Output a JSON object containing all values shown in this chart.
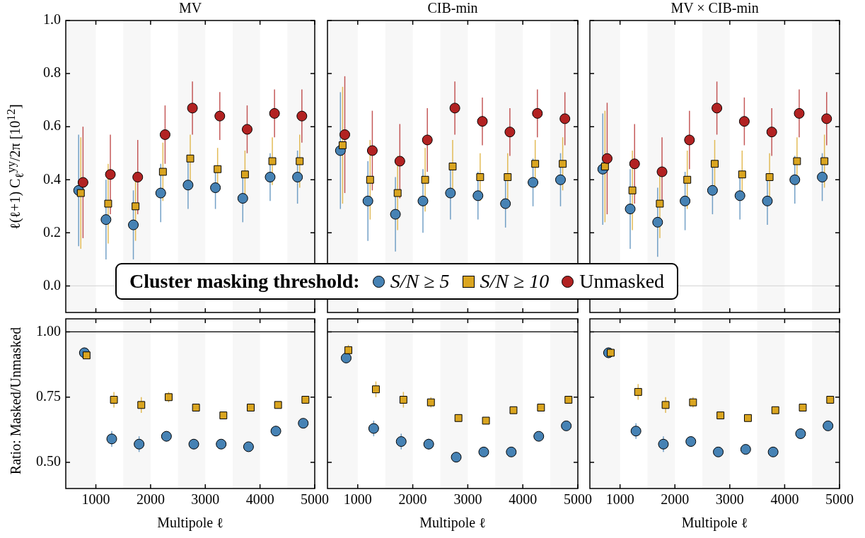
{
  "chart_data": [
    {
      "type": "scatter",
      "title": "MV",
      "ylabel": "ℓ(ℓ+1) C$_{ℓ}$$^{yy}$/2π [10$^{12}$]",
      "xlim": [
        450,
        5000
      ],
      "xticks": [
        1000,
        2000,
        3000,
        4000,
        5000
      ],
      "ylim": [
        -0.1,
        1.0
      ],
      "yticks": [
        {
          "value": 0,
          "label": "0.0"
        },
        {
          "value": 0.2,
          "label": "0.2"
        },
        {
          "value": 0.4,
          "label": "0.4"
        },
        {
          "value": 0.6,
          "label": "0.6"
        },
        {
          "value": 0.8,
          "label": "0.8"
        },
        {
          "value": 1.0,
          "label": "1.0"
        }
      ],
      "tick_labels": "y",
      "legend": "bottom",
      "legend_title": "Cluster masking threshold:",
      "bands": [
        {
          "axis": "x",
          "from": 450,
          "to": 1000,
          "color": "#f7f7f7"
        },
        {
          "axis": "x",
          "from": 1500,
          "to": 2000,
          "color": "#f7f7f7"
        },
        {
          "axis": "x",
          "from": 2500,
          "to": 3000,
          "color": "#f7f7f7"
        },
        {
          "axis": "x",
          "from": 3500,
          "to": 4000,
          "color": "#f7f7f7"
        },
        {
          "axis": "x",
          "from": 4500,
          "to": 5000,
          "color": "#f7f7f7"
        }
      ],
      "ref_lines": [
        {
          "axis": "y",
          "value": 0,
          "color": "#d9d9d9"
        }
      ],
      "series": [
        {
          "name": "S/N ≥ 5",
          "color": "#4682b4",
          "marker": "circle",
          "x": [
            685,
            1185,
            1685,
            2185,
            2685,
            3185,
            3685,
            4185,
            4685
          ],
          "values": [
            0.36,
            0.25,
            0.23,
            0.35,
            0.38,
            0.37,
            0.33,
            0.41,
            0.41
          ],
          "errors": [
            0.21,
            0.15,
            0.13,
            0.11,
            0.09,
            0.08,
            0.09,
            0.09,
            0.1
          ]
        },
        {
          "name": "S/N ≥ 10",
          "color": "#daa520",
          "marker": "square",
          "x": [
            725,
            1225,
            1725,
            2225,
            2725,
            3225,
            3725,
            4225,
            4725
          ],
          "values": [
            0.35,
            0.31,
            0.3,
            0.43,
            0.48,
            0.44,
            0.42,
            0.47,
            0.47
          ],
          "errors": [
            0.21,
            0.15,
            0.13,
            0.11,
            0.09,
            0.08,
            0.09,
            0.09,
            0.1
          ]
        },
        {
          "name": "Unmasked",
          "color": "#b22222",
          "marker": "circle",
          "x": [
            765,
            1265,
            1765,
            2265,
            2765,
            3265,
            3765,
            4265,
            4765
          ],
          "values": [
            0.39,
            0.42,
            0.41,
            0.57,
            0.67,
            0.64,
            0.59,
            0.65,
            0.64
          ],
          "errors": [
            0.21,
            0.15,
            0.14,
            0.11,
            0.1,
            0.09,
            0.09,
            0.09,
            0.1
          ]
        }
      ]
    },
    {
      "type": "scatter",
      "title": "CIB-min",
      "xlim": [
        450,
        5000
      ],
      "xticks": [
        1000,
        2000,
        3000,
        4000,
        5000
      ],
      "ylim": [
        -0.1,
        1.0
      ],
      "yticks": [
        0,
        0.2,
        0.4,
        0.6,
        0.8,
        1.0
      ],
      "tick_labels": false,
      "bands": [
        {
          "axis": "x",
          "from": 450,
          "to": 1000,
          "color": "#f7f7f7"
        },
        {
          "axis": "x",
          "from": 1500,
          "to": 2000,
          "color": "#f7f7f7"
        },
        {
          "axis": "x",
          "from": 2500,
          "to": 3000,
          "color": "#f7f7f7"
        },
        {
          "axis": "x",
          "from": 3500,
          "to": 4000,
          "color": "#f7f7f7"
        },
        {
          "axis": "x",
          "from": 4500,
          "to": 5000,
          "color": "#f7f7f7"
        }
      ],
      "series": [
        {
          "color": "#4682b4",
          "marker": "circle",
          "x": [
            685,
            1185,
            1685,
            2185,
            2685,
            3185,
            3685,
            4185,
            4685
          ],
          "values": [
            0.51,
            0.32,
            0.27,
            0.32,
            0.35,
            0.34,
            0.31,
            0.39,
            0.4
          ],
          "errors": [
            0.22,
            0.15,
            0.14,
            0.12,
            0.1,
            0.09,
            0.09,
            0.09,
            0.1
          ]
        },
        {
          "color": "#daa520",
          "marker": "square",
          "x": [
            725,
            1225,
            1725,
            2225,
            2725,
            3225,
            3725,
            4225,
            4725
          ],
          "values": [
            0.53,
            0.4,
            0.35,
            0.4,
            0.45,
            0.41,
            0.41,
            0.46,
            0.46
          ],
          "errors": [
            0.22,
            0.15,
            0.14,
            0.12,
            0.1,
            0.09,
            0.09,
            0.09,
            0.1
          ]
        },
        {
          "color": "#b22222",
          "marker": "circle",
          "x": [
            765,
            1265,
            1765,
            2265,
            2765,
            3265,
            3765,
            4265,
            4765
          ],
          "values": [
            0.57,
            0.51,
            0.47,
            0.55,
            0.67,
            0.62,
            0.58,
            0.65,
            0.63
          ],
          "errors": [
            0.22,
            0.15,
            0.14,
            0.12,
            0.1,
            0.09,
            0.09,
            0.09,
            0.1
          ]
        }
      ]
    },
    {
      "type": "scatter",
      "title": "MV × CIB-min",
      "xlim": [
        450,
        5000
      ],
      "xticks": [
        1000,
        2000,
        3000,
        4000,
        5000
      ],
      "ylim": [
        -0.1,
        1.0
      ],
      "yticks": [
        0,
        0.2,
        0.4,
        0.6,
        0.8,
        1.0
      ],
      "tick_labels": false,
      "bands": [
        {
          "axis": "x",
          "from": 450,
          "to": 1000,
          "color": "#f7f7f7"
        },
        {
          "axis": "x",
          "from": 1500,
          "to": 2000,
          "color": "#f7f7f7"
        },
        {
          "axis": "x",
          "from": 2500,
          "to": 3000,
          "color": "#f7f7f7"
        },
        {
          "axis": "x",
          "from": 3500,
          "to": 4000,
          "color": "#f7f7f7"
        },
        {
          "axis": "x",
          "from": 4500,
          "to": 5000,
          "color": "#f7f7f7"
        }
      ],
      "ref_lines": [
        {
          "axis": "y",
          "value": 0,
          "color": "#d9d9d9"
        }
      ],
      "series": [
        {
          "color": "#4682b4",
          "marker": "circle",
          "x": [
            685,
            1185,
            1685,
            2185,
            2685,
            3185,
            3685,
            4185,
            4685
          ],
          "values": [
            0.44,
            0.29,
            0.24,
            0.32,
            0.36,
            0.34,
            0.32,
            0.4,
            0.41
          ],
          "errors": [
            0.21,
            0.15,
            0.13,
            0.11,
            0.09,
            0.09,
            0.09,
            0.09,
            0.09
          ]
        },
        {
          "color": "#daa520",
          "marker": "square",
          "x": [
            725,
            1225,
            1725,
            2225,
            2725,
            3225,
            3725,
            4225,
            4725
          ],
          "values": [
            0.45,
            0.36,
            0.31,
            0.4,
            0.46,
            0.42,
            0.41,
            0.47,
            0.47
          ],
          "errors": [
            0.21,
            0.15,
            0.13,
            0.11,
            0.09,
            0.09,
            0.09,
            0.09,
            0.1
          ]
        },
        {
          "color": "#b22222",
          "marker": "circle",
          "x": [
            765,
            1265,
            1765,
            2265,
            2765,
            3265,
            3765,
            4265,
            4765
          ],
          "values": [
            0.48,
            0.46,
            0.43,
            0.55,
            0.67,
            0.62,
            0.58,
            0.65,
            0.63
          ],
          "errors": [
            0.21,
            0.15,
            0.13,
            0.11,
            0.1,
            0.09,
            0.09,
            0.09,
            0.1
          ]
        }
      ]
    },
    {
      "type": "scatter",
      "xlabel": "Multipole ℓ",
      "ylabel": "Ratio: Masked/Unmasked",
      "xlim": [
        450,
        5000
      ],
      "xticks": [
        1000,
        2000,
        3000,
        4000,
        5000
      ],
      "ylim": [
        0.4,
        1.05
      ],
      "yticks": [
        {
          "value": 0.5,
          "label": "0.50"
        },
        {
          "value": 0.75,
          "label": "0.75"
        },
        {
          "value": 1.0,
          "label": "1.00"
        }
      ],
      "bands": [
        {
          "axis": "x",
          "from": 450,
          "to": 1000,
          "color": "#f7f7f7"
        },
        {
          "axis": "x",
          "from": 1500,
          "to": 2000,
          "color": "#f7f7f7"
        },
        {
          "axis": "x",
          "from": 2500,
          "to": 3000,
          "color": "#f7f7f7"
        },
        {
          "axis": "x",
          "from": 3500,
          "to": 4000,
          "color": "#f7f7f7"
        },
        {
          "axis": "x",
          "from": 4500,
          "to": 5000,
          "color": "#f7f7f7"
        }
      ],
      "ref_lines": [
        {
          "axis": "y",
          "value": 1.0,
          "color": "#000000"
        }
      ],
      "series": [
        {
          "color": "#4682b4",
          "marker": "circle",
          "x": [
            790,
            1290,
            1790,
            2290,
            2790,
            3290,
            3790,
            4290,
            4790
          ],
          "values": [
            0.92,
            0.59,
            0.57,
            0.6,
            0.57,
            0.57,
            0.56,
            0.62,
            0.65
          ],
          "errors": [
            0.02,
            0.03,
            0.03,
            0.02,
            0.01,
            0.01,
            0.01,
            0.01,
            0.01
          ]
        },
        {
          "color": "#daa520",
          "marker": "square",
          "x": [
            830,
            1330,
            1830,
            2330,
            2830,
            3330,
            3830,
            4330,
            4830
          ],
          "values": [
            0.91,
            0.74,
            0.72,
            0.75,
            0.71,
            0.68,
            0.71,
            0.72,
            0.74
          ],
          "errors": [
            0.01,
            0.03,
            0.03,
            0.02,
            0.01,
            0.01,
            0.01,
            0.01,
            0.01
          ]
        }
      ]
    },
    {
      "type": "scatter",
      "xlabel": "Multipole ℓ",
      "xlim": [
        450,
        5000
      ],
      "xticks": [
        1000,
        2000,
        3000,
        4000,
        5000
      ],
      "ylim": [
        0.4,
        1.05
      ],
      "yticks": [
        0.5,
        0.75,
        1.0
      ],
      "tick_labels": "x",
      "bands": [
        {
          "axis": "x",
          "from": 450,
          "to": 1000,
          "color": "#f7f7f7"
        },
        {
          "axis": "x",
          "from": 1500,
          "to": 2000,
          "color": "#f7f7f7"
        },
        {
          "axis": "x",
          "from": 2500,
          "to": 3000,
          "color": "#f7f7f7"
        },
        {
          "axis": "x",
          "from": 3500,
          "to": 4000,
          "color": "#f7f7f7"
        },
        {
          "axis": "x",
          "from": 4500,
          "to": 5000,
          "color": "#f7f7f7"
        }
      ],
      "ref_lines": [
        {
          "axis": "y",
          "value": 1.0,
          "color": "#000000"
        }
      ],
      "series": [
        {
          "color": "#4682b4",
          "marker": "circle",
          "x": [
            790,
            1290,
            1790,
            2290,
            2790,
            3290,
            3790,
            4290,
            4790
          ],
          "values": [
            0.9,
            0.63,
            0.58,
            0.57,
            0.52,
            0.54,
            0.54,
            0.6,
            0.64
          ],
          "errors": [
            0.02,
            0.03,
            0.03,
            0.02,
            0.01,
            0.01,
            0.01,
            0.01,
            0.01
          ]
        },
        {
          "color": "#daa520",
          "marker": "square",
          "x": [
            830,
            1330,
            1830,
            2330,
            2830,
            3330,
            3830,
            4330,
            4830
          ],
          "values": [
            0.93,
            0.78,
            0.74,
            0.73,
            0.67,
            0.66,
            0.7,
            0.71,
            0.74
          ],
          "errors": [
            0.02,
            0.03,
            0.03,
            0.02,
            0.01,
            0.01,
            0.01,
            0.01,
            0.01
          ]
        }
      ]
    },
    {
      "type": "scatter",
      "xlabel": "Multipole ℓ",
      "xlim": [
        450,
        5000
      ],
      "xticks": [
        1000,
        2000,
        3000,
        4000,
        5000
      ],
      "ylim": [
        0.4,
        1.05
      ],
      "yticks": [
        0.5,
        0.75,
        1.0
      ],
      "tick_labels": "x",
      "bands": [
        {
          "axis": "x",
          "from": 450,
          "to": 1000,
          "color": "#f7f7f7"
        },
        {
          "axis": "x",
          "from": 1500,
          "to": 2000,
          "color": "#f7f7f7"
        },
        {
          "axis": "x",
          "from": 2500,
          "to": 3000,
          "color": "#f7f7f7"
        },
        {
          "axis": "x",
          "from": 3500,
          "to": 4000,
          "color": "#f7f7f7"
        },
        {
          "axis": "x",
          "from": 4500,
          "to": 5000,
          "color": "#f7f7f7"
        }
      ],
      "ref_lines": [
        {
          "axis": "y",
          "value": 1.0,
          "color": "#000000"
        }
      ],
      "series": [
        {
          "color": "#4682b4",
          "marker": "circle",
          "x": [
            790,
            1290,
            1790,
            2290,
            2790,
            3290,
            3790,
            4290,
            4790
          ],
          "values": [
            0.92,
            0.62,
            0.57,
            0.58,
            0.54,
            0.55,
            0.54,
            0.61,
            0.64
          ],
          "errors": [
            0.02,
            0.03,
            0.03,
            0.02,
            0.01,
            0.01,
            0.01,
            0.01,
            0.01
          ]
        },
        {
          "color": "#daa520",
          "marker": "square",
          "x": [
            830,
            1330,
            1830,
            2330,
            2830,
            3330,
            3830,
            4330,
            4830
          ],
          "values": [
            0.92,
            0.77,
            0.72,
            0.73,
            0.68,
            0.67,
            0.7,
            0.71,
            0.74
          ],
          "errors": [
            0.01,
            0.03,
            0.03,
            0.02,
            0.01,
            0.01,
            0.01,
            0.01,
            0.01
          ]
        }
      ]
    }
  ]
}
